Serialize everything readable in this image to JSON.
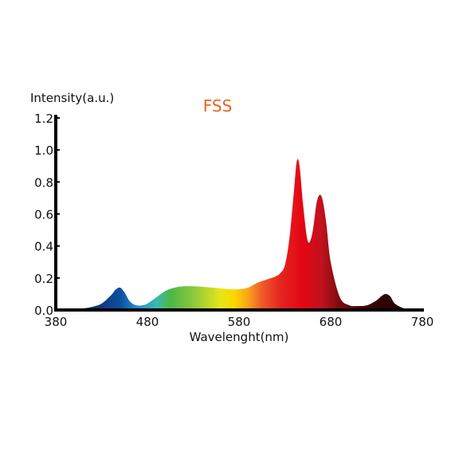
{
  "chart_data": {
    "type": "area",
    "title": "FSS",
    "title_color": "#e8641e",
    "xlabel": "Wavelenght(nm)",
    "ylabel": "Intensity(a.u.)",
    "xlim": [
      380,
      780
    ],
    "ylim": [
      0,
      1.2
    ],
    "x_ticks": [
      380,
      480,
      580,
      680,
      780
    ],
    "y_ticks": [
      "0.0",
      "0.2",
      "0.4",
      "0.6",
      "0.8",
      "1.0",
      "1.2"
    ],
    "grid": false,
    "series": [
      {
        "x": [
          380,
          390,
          400,
          410,
          420,
          430,
          440,
          445,
          450,
          455,
          460,
          465,
          470,
          475,
          480,
          490,
          500,
          510,
          520,
          530,
          540,
          550,
          560,
          570,
          580,
          590,
          600,
          610,
          620,
          625,
          630,
          635,
          640,
          643,
          646,
          650,
          655,
          660,
          665,
          670,
          675,
          680,
          690,
          700,
          710,
          720,
          730,
          735,
          740,
          745,
          750,
          760,
          770,
          780
        ],
        "y": [
          0.0,
          0.0,
          0.005,
          0.01,
          0.02,
          0.04,
          0.09,
          0.125,
          0.14,
          0.11,
          0.06,
          0.035,
          0.028,
          0.03,
          0.04,
          0.08,
          0.12,
          0.14,
          0.148,
          0.148,
          0.145,
          0.14,
          0.135,
          0.13,
          0.13,
          0.14,
          0.17,
          0.19,
          0.21,
          0.23,
          0.28,
          0.45,
          0.75,
          0.93,
          0.9,
          0.65,
          0.43,
          0.48,
          0.68,
          0.71,
          0.55,
          0.3,
          0.08,
          0.03,
          0.025,
          0.03,
          0.06,
          0.085,
          0.1,
          0.085,
          0.04,
          0.01,
          0.005,
          0.0
        ]
      }
    ]
  }
}
